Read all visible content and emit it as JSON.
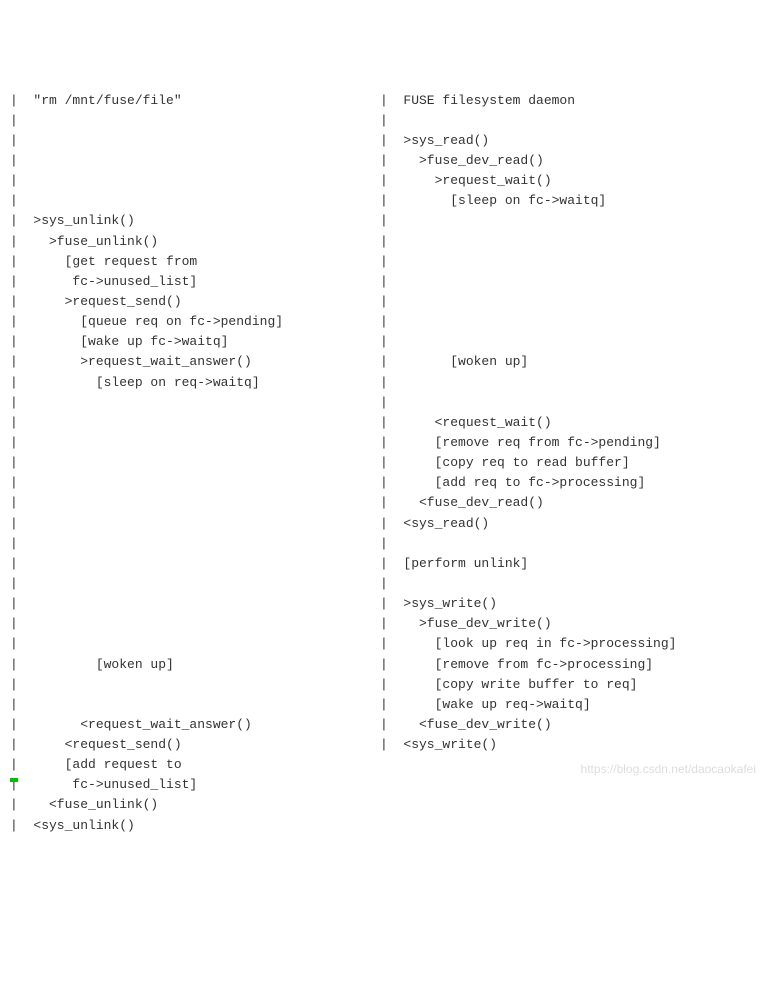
{
  "left": {
    "lines": [
      "|  \"rm /mnt/fuse/file\"",
      "|",
      "|",
      "|",
      "|",
      "|",
      "|  >sys_unlink()",
      "|    >fuse_unlink()",
      "|      [get request from",
      "|       fc->unused_list]",
      "|      >request_send()",
      "|        [queue req on fc->pending]",
      "|        [wake up fc->waitq]",
      "|        >request_wait_answer()",
      "|          [sleep on req->waitq]",
      "|",
      "|",
      "|",
      "|",
      "|",
      "|",
      "|",
      "|",
      "|",
      "|",
      "|",
      "|",
      "|",
      "|          [woken up]",
      "|",
      "|",
      "|        <request_wait_answer()",
      "|      <request_send()",
      "|      [add request to",
      "|       fc->unused_list]",
      "|    <fuse_unlink()",
      "|  <sys_unlink()"
    ]
  },
  "right": {
    "lines": [
      "|  FUSE filesystem daemon",
      "|",
      "|  >sys_read()",
      "|    >fuse_dev_read()",
      "|      >request_wait()",
      "|        [sleep on fc->waitq]",
      "|",
      "|",
      "|",
      "|",
      "|",
      "|",
      "|",
      "|        [woken up]",
      "|",
      "|",
      "|      <request_wait()",
      "|      [remove req from fc->pending]",
      "|      [copy req to read buffer]",
      "|      [add req to fc->processing]",
      "|    <fuse_dev_read()",
      "|  <sys_read()",
      "|",
      "|  [perform unlink]",
      "|",
      "|  >sys_write()",
      "|    >fuse_dev_write()",
      "|      [look up req in fc->processing]",
      "|      [remove from fc->processing]",
      "|      [copy write buffer to req]",
      "|      [wake up req->waitq]",
      "|    <fuse_dev_write()",
      "|  <sys_write()",
      "",
      "",
      "",
      ""
    ]
  },
  "watermark": "https://blog.csdn.net/daocaokafei"
}
